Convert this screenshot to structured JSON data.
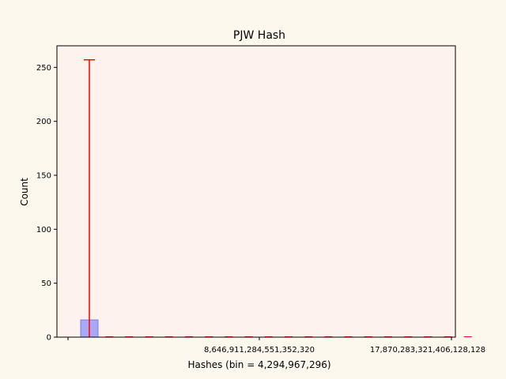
{
  "chart_data": {
    "type": "bar",
    "title": "PJW Hash",
    "xlabel": "Hashes (bin = 4,294,967,296)",
    "ylabel": "Count",
    "ylim": [
      0,
      270
    ],
    "yticks": [
      0,
      50,
      100,
      150,
      200,
      250
    ],
    "x_tick_labels": [
      "8,646,911,284,551,352,320",
      "17,870,283,321,406,128,128"
    ],
    "bars": [
      {
        "bin": 0,
        "value": 16,
        "error_upper": 257
      }
    ],
    "grid": false,
    "legend": "none",
    "colors": {
      "figure_background": "#fdf8ee",
      "axes_background": "#fef2ec",
      "bar_fill": "#a9a9f5",
      "bar_edge": "#7b7bf0",
      "error_bar": "#ff0000"
    }
  }
}
